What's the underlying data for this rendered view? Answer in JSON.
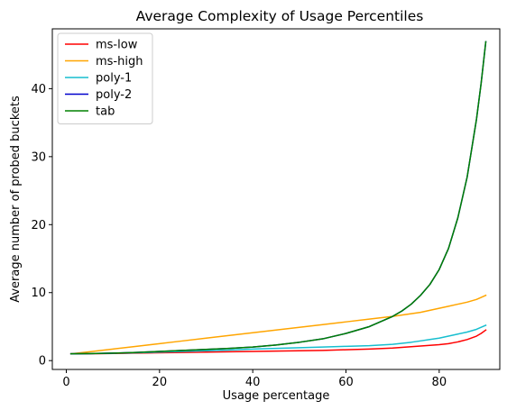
{
  "chart_data": {
    "type": "line",
    "title": "Average Complexity of Usage Percentiles",
    "xlabel": "Usage percentage",
    "ylabel": "Average number of probed buckets",
    "xlim": [
      -3,
      93
    ],
    "ylim": [
      -1.3,
      48.8
    ],
    "xticks": [
      0,
      20,
      40,
      60,
      80
    ],
    "yticks": [
      0,
      10,
      20,
      30,
      40
    ],
    "grid": false,
    "legend_position": "top-left",
    "x": [
      1,
      5,
      10,
      15,
      20,
      25,
      30,
      35,
      40,
      45,
      50,
      55,
      60,
      65,
      70,
      72,
      74,
      76,
      78,
      80,
      82,
      84,
      86,
      88,
      89,
      90
    ],
    "series": [
      {
        "name": "ms-low",
        "color": "#ff0000",
        "values": [
          1.0,
          1.0,
          1.05,
          1.1,
          1.15,
          1.2,
          1.25,
          1.3,
          1.35,
          1.4,
          1.45,
          1.5,
          1.6,
          1.7,
          1.85,
          1.95,
          2.05,
          2.15,
          2.25,
          2.35,
          2.5,
          2.75,
          3.1,
          3.6,
          4.0,
          4.5
        ]
      },
      {
        "name": "ms-high",
        "color": "#ffa500",
        "values": [
          1.0,
          1.3,
          1.7,
          2.1,
          2.5,
          2.9,
          3.3,
          3.7,
          4.1,
          4.5,
          4.9,
          5.3,
          5.7,
          6.1,
          6.5,
          6.7,
          6.9,
          7.1,
          7.4,
          7.7,
          8.0,
          8.3,
          8.6,
          9.0,
          9.3,
          9.6
        ]
      },
      {
        "name": "poly-1",
        "color": "#17becf",
        "values": [
          1.0,
          1.02,
          1.08,
          1.15,
          1.25,
          1.35,
          1.45,
          1.55,
          1.7,
          1.8,
          1.9,
          2.0,
          2.1,
          2.2,
          2.4,
          2.55,
          2.7,
          2.9,
          3.1,
          3.3,
          3.6,
          3.9,
          4.2,
          4.6,
          4.9,
          5.2
        ]
      },
      {
        "name": "poly-2",
        "color": "#0000cd",
        "values": [
          1.0,
          1.03,
          1.1,
          1.2,
          1.35,
          1.5,
          1.65,
          1.8,
          2.0,
          2.3,
          2.7,
          3.2,
          4.0,
          5.0,
          6.5,
          7.3,
          8.3,
          9.6,
          11.2,
          13.4,
          16.5,
          21.0,
          27.0,
          35.5,
          40.8,
          46.9
        ]
      },
      {
        "name": "tab",
        "color": "#008000",
        "values": [
          1.0,
          1.03,
          1.1,
          1.2,
          1.35,
          1.5,
          1.65,
          1.8,
          2.0,
          2.3,
          2.7,
          3.2,
          4.0,
          5.0,
          6.5,
          7.3,
          8.3,
          9.6,
          11.2,
          13.4,
          16.5,
          21.0,
          27.0,
          35.5,
          40.8,
          46.9
        ]
      }
    ]
  }
}
